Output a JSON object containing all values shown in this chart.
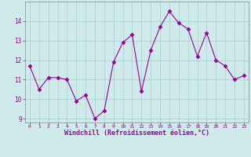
{
  "x": [
    0,
    1,
    2,
    3,
    4,
    5,
    6,
    7,
    8,
    9,
    10,
    11,
    12,
    13,
    14,
    15,
    16,
    17,
    18,
    19,
    20,
    21,
    22,
    23
  ],
  "y": [
    11.7,
    10.5,
    11.1,
    11.1,
    11.0,
    9.9,
    10.2,
    9.0,
    9.4,
    11.9,
    12.9,
    13.3,
    10.4,
    12.5,
    13.7,
    14.5,
    13.9,
    13.6,
    12.2,
    13.4,
    12.0,
    11.7,
    11.0,
    11.2
  ],
  "line_color": "#990099",
  "marker": "D",
  "marker_size": 2.5,
  "bg_color": "#ceeaea",
  "grid_color": "#aacccc",
  "xlabel": "Windchill (Refroidissement éolien,°C)",
  "xlabel_color": "#990099",
  "tick_color": "#990099",
  "ylim": [
    8.8,
    15.0
  ],
  "xlim": [
    -0.5,
    23.5
  ],
  "yticks": [
    9,
    10,
    11,
    12,
    13,
    14
  ],
  "xticks": [
    0,
    1,
    2,
    3,
    4,
    5,
    6,
    7,
    8,
    9,
    10,
    11,
    12,
    13,
    14,
    15,
    16,
    17,
    18,
    19,
    20,
    21,
    22,
    23
  ]
}
